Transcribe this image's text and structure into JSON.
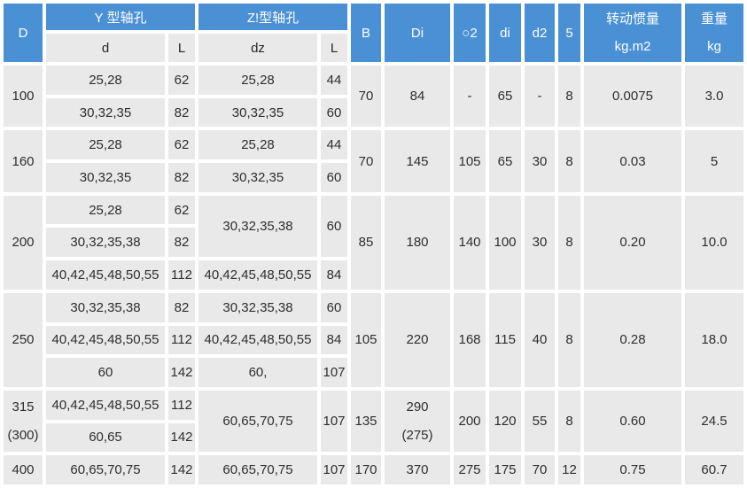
{
  "colors": {
    "header_blue": "#4a90d5",
    "cell_gray": "#e9e9e9",
    "gutter_white": "#ffffff",
    "header_text": "#ffffff",
    "body_text": "#2e2e2e"
  },
  "table": {
    "header_rows": [
      [
        {
          "t": "D",
          "rs": 2,
          "n": "col-header-D"
        },
        {
          "t": "Y 型轴孔",
          "cs": 2,
          "n": "col-header-Y-type-shaft-hole"
        },
        {
          "t": "Z!型轴孔",
          "cs": 2,
          "n": "col-header-Z-type-shaft-hole"
        },
        {
          "t": "B",
          "rs": 2,
          "n": "col-header-B"
        },
        {
          "t": "Di",
          "rs": 2,
          "n": "col-header-Di"
        },
        {
          "t": "○2",
          "rs": 2,
          "n": "col-header-O2"
        },
        {
          "t": "di",
          "rs": 2,
          "n": "col-header-di"
        },
        {
          "t": "d2",
          "rs": 2,
          "n": "col-header-d2"
        },
        {
          "t": "5",
          "rs": 2,
          "n": "col-header-5"
        },
        {
          "t": "转动惯量\nkg.m2",
          "rs": 2,
          "tl": true,
          "n": "col-header-rotational-inertia"
        },
        {
          "t": "重量\nkg",
          "rs": 2,
          "tl": true,
          "n": "col-header-weight"
        }
      ],
      [
        {
          "t": "d",
          "g": true,
          "n": "subcol-header-d"
        },
        {
          "t": "L",
          "g": true,
          "n": "subcol-header-L"
        },
        {
          "t": "dz",
          "g": true,
          "n": "subcol-header-dz"
        },
        {
          "t": "L",
          "g": true,
          "n": "subcol-header-Lz"
        }
      ]
    ],
    "body_rows": [
      [
        {
          "t": "100",
          "rs": 2,
          "n": "cell-D"
        },
        {
          "t": "25,28"
        },
        {
          "t": "62"
        },
        {
          "t": "25,28"
        },
        {
          "t": "44"
        },
        {
          "t": "70",
          "rs": 2
        },
        {
          "t": "84",
          "rs": 2
        },
        {
          "t": "-",
          "rs": 2
        },
        {
          "t": "65",
          "rs": 2
        },
        {
          "t": "-",
          "rs": 2
        },
        {
          "t": "8",
          "rs": 2
        },
        {
          "t": "0.0075",
          "rs": 2
        },
        {
          "t": "3.0",
          "rs": 2
        }
      ],
      [
        {
          "t": "30,32,35"
        },
        {
          "t": "82"
        },
        {
          "t": "30,32,35"
        },
        {
          "t": "60"
        }
      ],
      [
        {
          "t": "160",
          "rs": 2,
          "n": "cell-D"
        },
        {
          "t": "25,28"
        },
        {
          "t": "62"
        },
        {
          "t": "25,28"
        },
        {
          "t": "44"
        },
        {
          "t": "70",
          "rs": 2
        },
        {
          "t": "145",
          "rs": 2
        },
        {
          "t": "105",
          "rs": 2
        },
        {
          "t": "65",
          "rs": 2
        },
        {
          "t": "30",
          "rs": 2
        },
        {
          "t": "8",
          "rs": 2
        },
        {
          "t": "0.03",
          "rs": 2
        },
        {
          "t": "5",
          "rs": 2
        }
      ],
      [
        {
          "t": "30,32,35"
        },
        {
          "t": "82"
        },
        {
          "t": "30,32,35"
        },
        {
          "t": "60"
        }
      ],
      [
        {
          "t": "200",
          "rs": 3,
          "n": "cell-D"
        },
        {
          "t": "25,28"
        },
        {
          "t": "62"
        },
        {
          "t": "30,32,35,38",
          "rs": 2
        },
        {
          "t": "60",
          "rs": 2
        },
        {
          "t": "85",
          "rs": 3
        },
        {
          "t": "180",
          "rs": 3
        },
        {
          "t": "140",
          "rs": 3
        },
        {
          "t": "100",
          "rs": 3
        },
        {
          "t": "30",
          "rs": 3
        },
        {
          "t": "8",
          "rs": 3
        },
        {
          "t": "0.20",
          "rs": 3
        },
        {
          "t": "10.0",
          "rs": 3
        }
      ],
      [
        {
          "t": "30,32,35,38"
        },
        {
          "t": "82"
        }
      ],
      [
        {
          "t": "40,42,45,48,50,55"
        },
        {
          "t": "112"
        },
        {
          "t": "40,42,45,48,50,55"
        },
        {
          "t": "84"
        }
      ],
      [
        {
          "t": "250",
          "rs": 3,
          "n": "cell-D"
        },
        {
          "t": "30,32,35,38"
        },
        {
          "t": "82"
        },
        {
          "t": "30,32,35,38"
        },
        {
          "t": "60"
        },
        {
          "t": "105",
          "rs": 3
        },
        {
          "t": "220",
          "rs": 3
        },
        {
          "t": "168",
          "rs": 3
        },
        {
          "t": "115",
          "rs": 3
        },
        {
          "t": "40",
          "rs": 3
        },
        {
          "t": "8",
          "rs": 3
        },
        {
          "t": "0.28",
          "rs": 3
        },
        {
          "t": "18.0",
          "rs": 3
        }
      ],
      [
        {
          "t": "40,42,45,48,50,55"
        },
        {
          "t": "112"
        },
        {
          "t": "40,42,45,48,50,55"
        },
        {
          "t": "84"
        }
      ],
      [
        {
          "t": "60"
        },
        {
          "t": "142"
        },
        {
          "t": "60,"
        },
        {
          "t": "107"
        }
      ],
      [
        {
          "t": "315\n(300)",
          "rs": 2,
          "tl": true,
          "n": "cell-D"
        },
        {
          "t": "40,42,45,48,50,55"
        },
        {
          "t": "112"
        },
        {
          "t": "60,65,70,75",
          "rs": 2
        },
        {
          "t": "107",
          "rs": 2
        },
        {
          "t": "135",
          "rs": 2
        },
        {
          "t": "290\n(275)",
          "rs": 2,
          "tl": true
        },
        {
          "t": "200",
          "rs": 2
        },
        {
          "t": "120",
          "rs": 2
        },
        {
          "t": "55",
          "rs": 2
        },
        {
          "t": "8",
          "rs": 2
        },
        {
          "t": "0.60",
          "rs": 2
        },
        {
          "t": "24.5",
          "rs": 2
        }
      ],
      [
        {
          "t": "60,65"
        },
        {
          "t": "142"
        }
      ],
      [
        {
          "t": "400",
          "n": "cell-D"
        },
        {
          "t": "60,65,70,75"
        },
        {
          "t": "142"
        },
        {
          "t": "60,65,70,75"
        },
        {
          "t": "107"
        },
        {
          "t": "170"
        },
        {
          "t": "370"
        },
        {
          "t": "275"
        },
        {
          "t": "175"
        },
        {
          "t": "70"
        },
        {
          "t": "12"
        },
        {
          "t": "0.75"
        },
        {
          "t": "60.7"
        }
      ]
    ]
  }
}
